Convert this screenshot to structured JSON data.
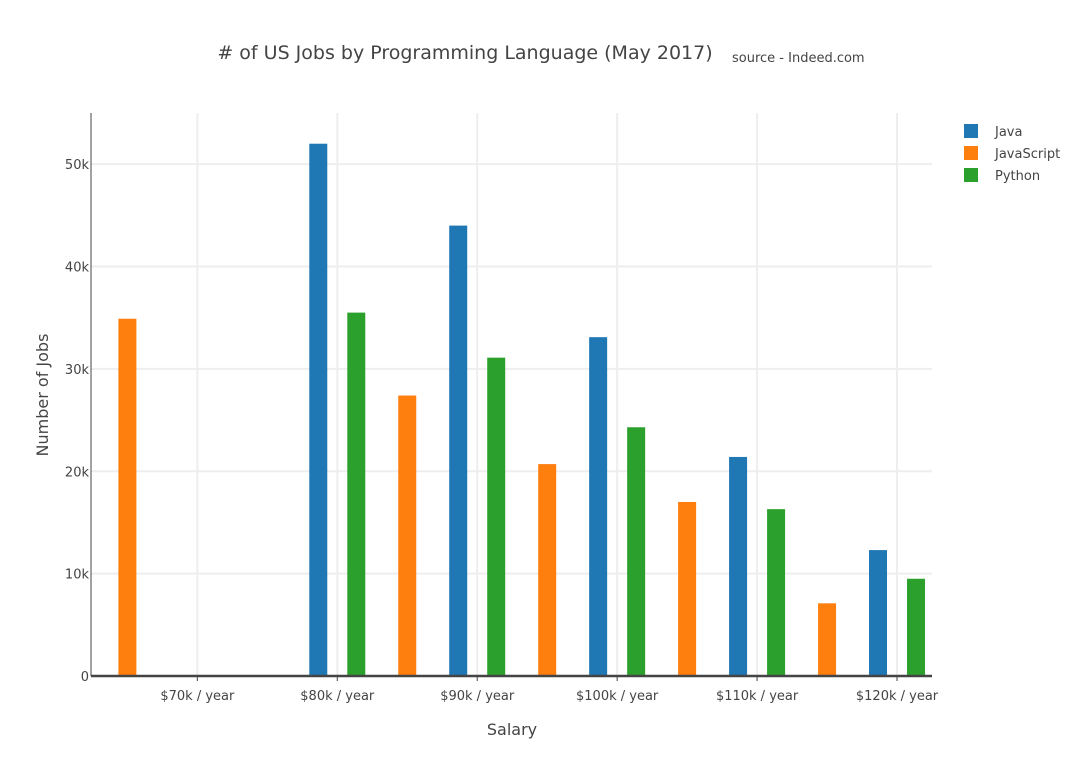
{
  "chart_data": {
    "type": "bar",
    "title": "# of US Jobs by Programming Language (May 2017)",
    "subtitle": "source - Indeed.com",
    "xlabel": "Salary",
    "ylabel": "Number of Jobs",
    "x_tick_labels": [
      "$70k / year",
      "$80k / year",
      "$90k / year",
      "$100k / year",
      "$110k / year",
      "$120k / year"
    ],
    "x_ticks": [
      70,
      80,
      90,
      100,
      110,
      120
    ],
    "y_tick_labels": [
      "0",
      "10k",
      "20k",
      "30k",
      "40k",
      "50k"
    ],
    "y_ticks": [
      0,
      10000,
      20000,
      30000,
      40000,
      50000
    ],
    "ylim": [
      0,
      55000
    ],
    "xlim": [
      62.4,
      122.5
    ],
    "grid": true,
    "legend_position": "top-right",
    "series": [
      {
        "name": "Java",
        "color": "#1f77b4",
        "x": [
          80,
          90,
          100,
          110,
          120
        ],
        "values": [
          52000,
          44000,
          33100,
          21400,
          12300
        ]
      },
      {
        "name": "JavaScript",
        "color": "#ff7f0e",
        "x": [
          65,
          85,
          95,
          105,
          115
        ],
        "values": [
          34900,
          27400,
          20700,
          17000,
          7100
        ]
      },
      {
        "name": "Python",
        "color": "#2ca02c",
        "x": [
          80,
          90,
          100,
          110,
          120
        ],
        "values": [
          35500,
          31100,
          24300,
          16300,
          9500
        ]
      }
    ]
  }
}
